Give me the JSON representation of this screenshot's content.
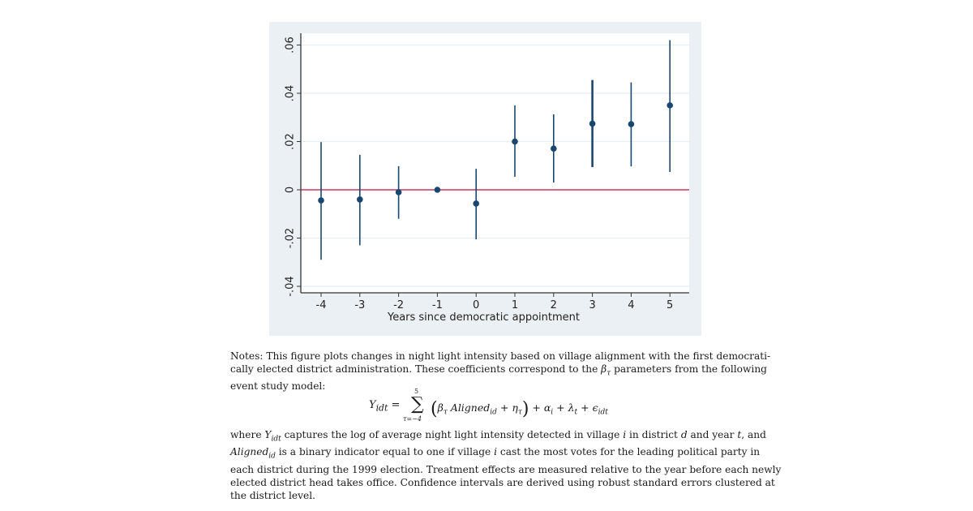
{
  "chart_data": {
    "type": "scatter",
    "subtype": "event-study coefficient plot with 95% confidence intervals",
    "title": "",
    "xlabel": "Years since democratic appointment",
    "ylabel": "",
    "x_ticks": [
      "-4",
      "-3",
      "-2",
      "-1",
      "0",
      "1",
      "2",
      "3",
      "4",
      "5"
    ],
    "y_ticks": [
      ".06",
      ".04",
      ".02",
      "0",
      "-.02",
      "-.04"
    ],
    "y_tick_values": [
      0.06,
      0.04,
      0.02,
      0,
      -0.02,
      -0.04
    ],
    "ylim": [
      -0.042,
      0.064
    ],
    "xlim": [
      -4.5,
      5.5
    ],
    "grid": true,
    "reference_line": {
      "y": 0,
      "color": "#c0143c"
    },
    "point_color": "#1a476f",
    "series": [
      {
        "name": "coefficient",
        "x": [
          -4,
          -3,
          -2,
          -1,
          0,
          1,
          2,
          3,
          4,
          5
        ],
        "values": [
          -0.0044,
          -0.004,
          -0.001,
          0.0,
          -0.0057,
          0.02,
          0.0171,
          0.0274,
          0.0272,
          0.035
        ],
        "ci_upper": [
          0.0198,
          0.0145,
          0.0098,
          null,
          0.0087,
          0.035,
          0.0313,
          0.0455,
          0.0445,
          0.062
        ],
        "ci_lower": [
          -0.029,
          -0.023,
          -0.012,
          null,
          -0.0205,
          0.0054,
          0.003,
          0.0094,
          0.0097,
          0.0074
        ]
      }
    ]
  },
  "notes": {
    "lines": [
      "Notes: This figure plots changes in night light intensity based on village alignment with the first democrati-",
      "cally elected district administration. These coefficients correspond to the β_τ parameters from the following",
      "event study model:"
    ],
    "equation": {
      "lhs": "Y_idt",
      "sum_upper": "5",
      "sum_lower": "τ=−4",
      "rhs": "(β_τ Aligned_id + η_τ) + α_i + λ_t + ε_idt"
    },
    "lines_after": [
      "where Y_idt captures the log of average night light intensity detected in village i in district d and year t, and",
      "Aligned_id is a binary indicator equal to one if village i cast the most votes for the leading political party in",
      "each district during the 1999 election. Treatment effects are measured relative to the year before each newly",
      "elected district head takes office. Confidence intervals are derived using robust standard errors clustered at",
      "the district level."
    ]
  }
}
